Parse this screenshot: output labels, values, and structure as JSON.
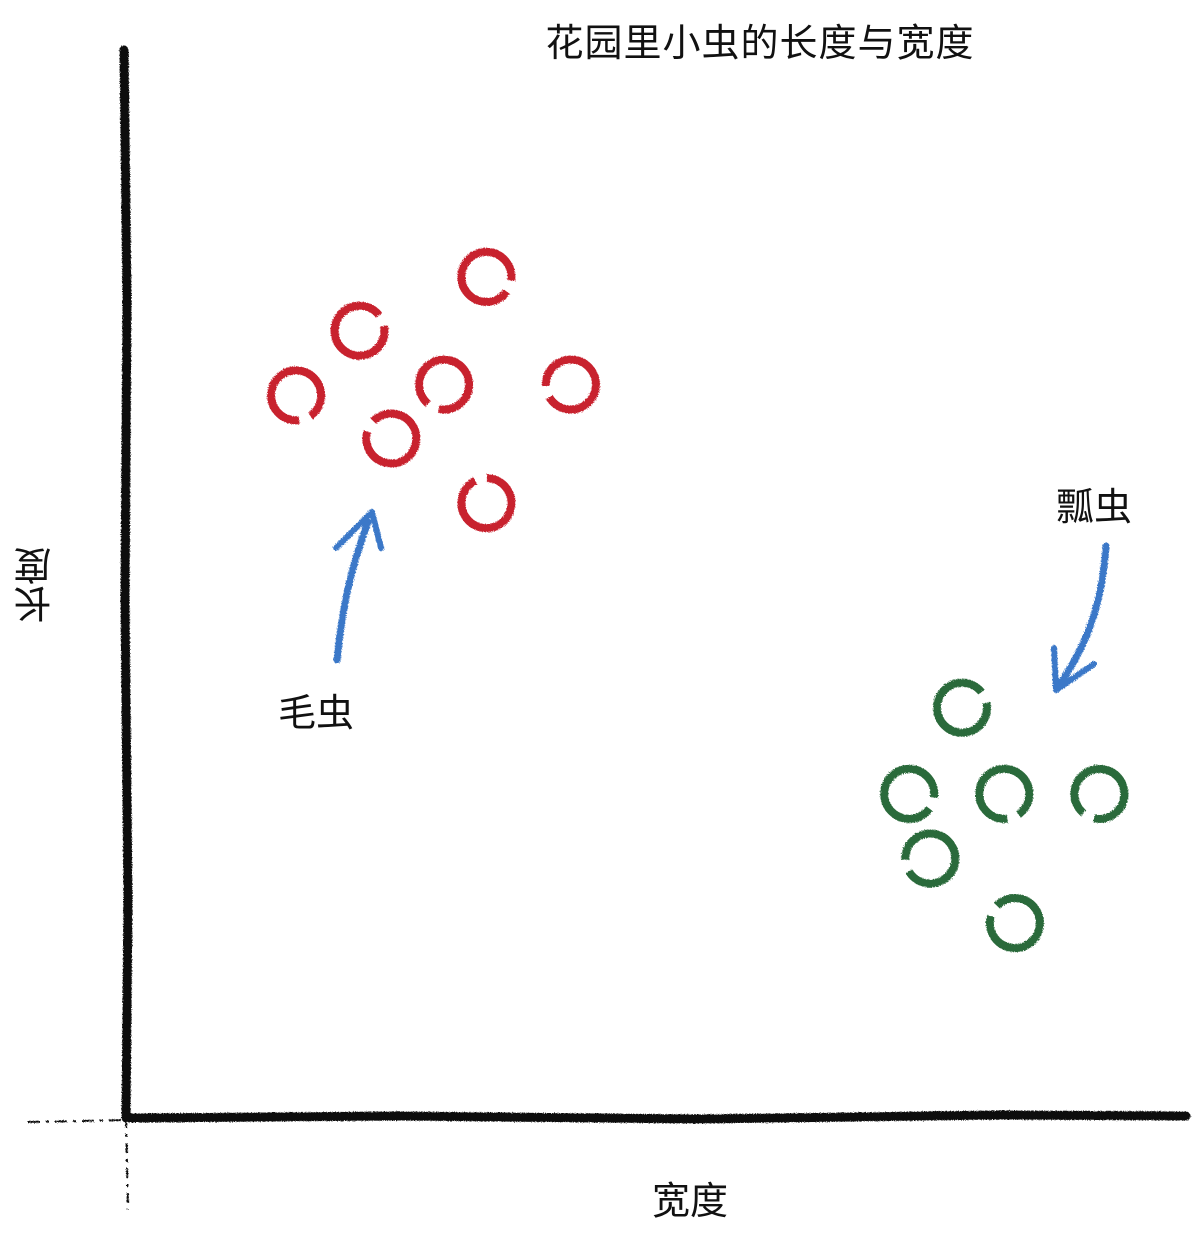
{
  "chart_data": {
    "type": "scatter",
    "title": "花园里小虫的长度与宽度",
    "xlabel": "宽度",
    "ylabel": "长度",
    "grid": false,
    "legend": "none",
    "xlim": [
      0,
      100
    ],
    "ylim": [
      0,
      100
    ],
    "series": [
      {
        "name": "毛虫",
        "color": "#c8202f",
        "points": [
          {
            "x": 22,
            "y": 73
          },
          {
            "x": 34,
            "y": 78
          },
          {
            "x": 16,
            "y": 67
          },
          {
            "x": 30,
            "y": 68
          },
          {
            "x": 42,
            "y": 68
          },
          {
            "x": 25,
            "y": 63
          },
          {
            "x": 34,
            "y": 57
          }
        ]
      },
      {
        "name": "瓢虫",
        "color": "#2a6a3a",
        "points": [
          {
            "x": 79,
            "y": 38
          },
          {
            "x": 74,
            "y": 30
          },
          {
            "x": 83,
            "y": 30
          },
          {
            "x": 92,
            "y": 30
          },
          {
            "x": 76,
            "y": 24
          },
          {
            "x": 84,
            "y": 18
          }
        ]
      }
    ]
  },
  "annotations": {
    "caterpillar_label": "毛虫",
    "ladybug_label": "瓢虫",
    "arrow_color": "#3a78c8"
  },
  "style": {
    "axis_color": "#111111"
  }
}
